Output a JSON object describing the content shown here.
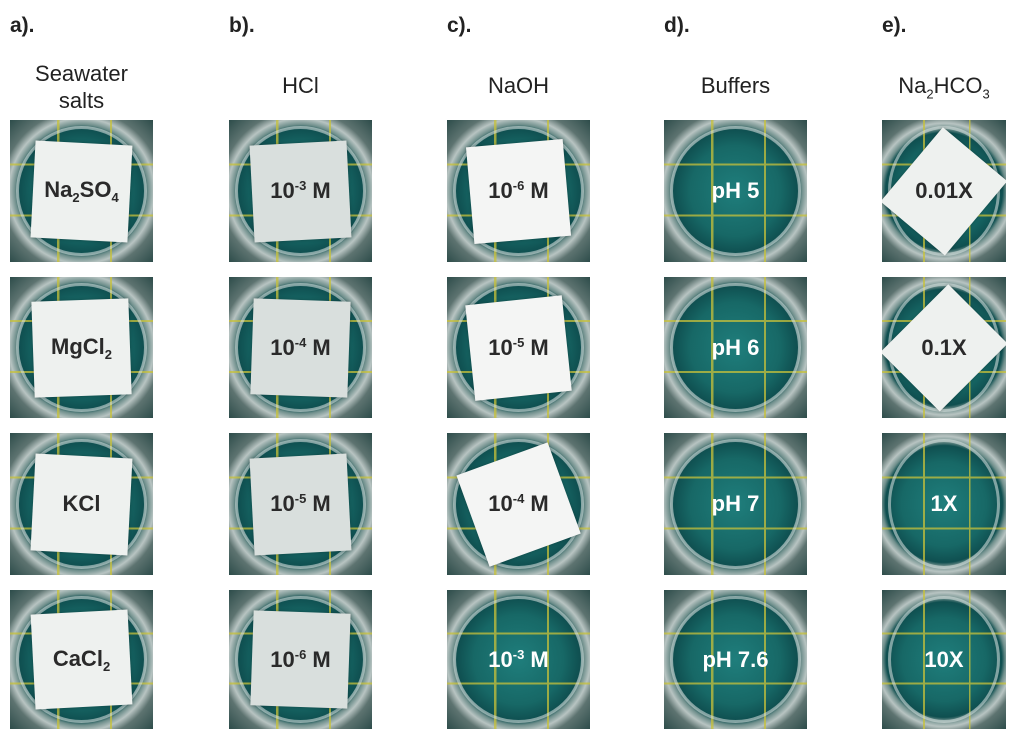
{
  "panels": [
    {
      "letter": "a).",
      "title": [
        [
          {
            "text": "Seawater"
          }
        ],
        [
          {
            "text": "salts"
          }
        ]
      ],
      "tiles": [
        [
          {
            "text": "Na"
          },
          {
            "sub": "2"
          },
          {
            "text": "SO"
          },
          {
            "sub": "4"
          }
        ],
        [
          {
            "text": "MgCl"
          },
          {
            "sub": "2"
          }
        ],
        [
          {
            "text": "KCl"
          }
        ],
        [
          {
            "text": "CaCl"
          },
          {
            "sub": "2"
          }
        ]
      ]
    },
    {
      "letter": "b).",
      "title": [
        [
          {
            "text": "HCl"
          }
        ]
      ],
      "tiles": [
        [
          {
            "text": "10"
          },
          {
            "sup": "-3"
          },
          {
            "text": " M"
          }
        ],
        [
          {
            "text": "10"
          },
          {
            "sup": "-4"
          },
          {
            "text": " M"
          }
        ],
        [
          {
            "text": "10"
          },
          {
            "sup": "-5"
          },
          {
            "text": " M"
          }
        ],
        [
          {
            "text": "10"
          },
          {
            "sup": "-6"
          },
          {
            "text": " M"
          }
        ]
      ]
    },
    {
      "letter": "c).",
      "title": [
        [
          {
            "text": "NaOH"
          }
        ]
      ],
      "tiles": [
        [
          {
            "text": "10"
          },
          {
            "sup": "-6"
          },
          {
            "text": " M"
          }
        ],
        [
          {
            "text": "10"
          },
          {
            "sup": "-5"
          },
          {
            "text": " M"
          }
        ],
        [
          {
            "text": "10"
          },
          {
            "sup": "-4"
          },
          {
            "text": " M"
          }
        ],
        [
          {
            "text": "10"
          },
          {
            "sup": "-3"
          },
          {
            "text": " M"
          }
        ]
      ]
    },
    {
      "letter": "d).",
      "title": [
        [
          {
            "text": "Buffers"
          }
        ]
      ],
      "tiles": [
        [
          {
            "text": "pH 5"
          }
        ],
        [
          {
            "text": "pH 6"
          }
        ],
        [
          {
            "text": "pH 7"
          }
        ],
        [
          {
            "text": "pH 7.6"
          }
        ]
      ]
    },
    {
      "letter": "e).",
      "title": [
        [
          {
            "text": "Na"
          },
          {
            "sub": "2"
          },
          {
            "text": "HCO"
          },
          {
            "sub": "3"
          }
        ]
      ],
      "tiles": [
        [
          {
            "text": "0.01X"
          }
        ],
        [
          {
            "text": "0.1X"
          }
        ],
        [
          {
            "text": "1X"
          }
        ],
        [
          {
            "text": "10X"
          }
        ]
      ]
    }
  ]
}
